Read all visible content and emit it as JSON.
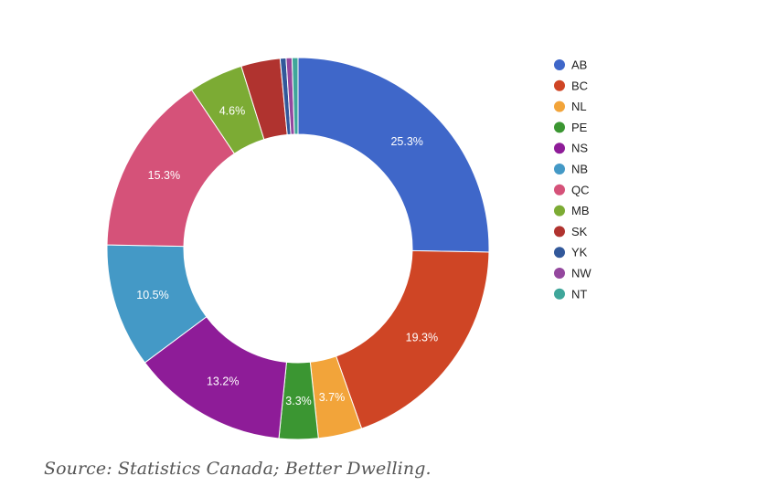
{
  "chart_data": {
    "type": "pie",
    "donut": true,
    "legend_position": "right",
    "categories": [
      "AB",
      "BC",
      "NL",
      "PE",
      "NS",
      "NB",
      "QC",
      "MB",
      "SK",
      "YK",
      "NW",
      "NT"
    ],
    "values": [
      25.3,
      19.3,
      3.7,
      3.3,
      13.2,
      10.5,
      15.3,
      4.6,
      3.3,
      0.5,
      0.5,
      0.5
    ],
    "labels": [
      "25.3%",
      "19.3%",
      "3.7%",
      "3.3%",
      "13.2%",
      "10.5%",
      "15.3%",
      "4.6%",
      "",
      "",
      "",
      ""
    ],
    "colors": [
      "#3f67c9",
      "#cf4525",
      "#f2a43a",
      "#3b9632",
      "#8e1c98",
      "#4499c6",
      "#d55279",
      "#7cab34",
      "#b0332f",
      "#32589a",
      "#94479e",
      "#3fa69a"
    ]
  },
  "source": "Source: Statistics Canada; Better Dwelling."
}
